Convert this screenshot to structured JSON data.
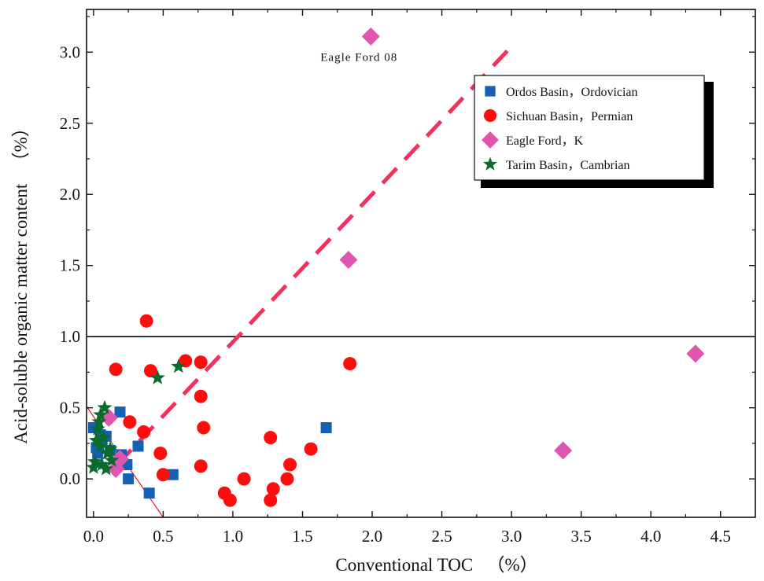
{
  "chart_data": {
    "type": "scatter",
    "title": "",
    "xlabel": "Conventional TOC 　（%）",
    "ylabel": "Acid-soluble organic matter content 　（%）",
    "xlim": [
      -0.05,
      4.75
    ],
    "ylim": [
      -0.27,
      3.3
    ],
    "xticks": [
      0.0,
      0.5,
      1.0,
      1.5,
      2.0,
      2.5,
      3.0,
      3.5,
      4.0,
      4.5
    ],
    "yticks": [
      0.0,
      0.5,
      1.0,
      1.5,
      2.0,
      2.5,
      3.0
    ],
    "xtick_labels": [
      "0.0",
      "0.5",
      "1.0",
      "1.5",
      "2.0",
      "2.5",
      "3.0",
      "3.5",
      "4.0",
      "4.5"
    ],
    "ytick_labels": [
      "0.0",
      "0.5",
      "1.0",
      "1.5",
      "2.0",
      "2.5",
      "3.0"
    ],
    "legend_position": "top-right",
    "annotation": {
      "text": "Eagle Ford 08",
      "x": 1.99,
      "y": 2.97
    },
    "reference_lines": [
      {
        "name": "horizontal-line-1",
        "type": "horizontal",
        "y": 1.0,
        "color": "#000000"
      },
      {
        "name": "thin-red-diagonal",
        "type": "segment",
        "x1": -0.05,
        "y1": 0.51,
        "x2": 0.5,
        "y2": -0.27,
        "color": "#e0202a"
      },
      {
        "name": "trend-line",
        "type": "segment",
        "dashed": true,
        "x1": 0.17,
        "y1": 0.1,
        "x2": 3.0,
        "y2": 3.04,
        "color": "#f0325f"
      }
    ],
    "series": [
      {
        "name": "Ordos Basin，Ordovician",
        "marker": "square",
        "color": "#1560b4",
        "points": [
          [
            0.0,
            0.36
          ],
          [
            0.02,
            0.22
          ],
          [
            0.03,
            0.18
          ],
          [
            0.05,
            0.31
          ],
          [
            0.06,
            0.26
          ],
          [
            0.09,
            0.3
          ],
          [
            0.12,
            0.2
          ],
          [
            0.19,
            0.47
          ],
          [
            0.2,
            0.17
          ],
          [
            0.24,
            0.1
          ],
          [
            0.25,
            0.0
          ],
          [
            0.32,
            0.23
          ],
          [
            0.4,
            -0.1
          ],
          [
            0.57,
            0.03
          ],
          [
            1.67,
            0.36
          ]
        ]
      },
      {
        "name": "Sichuan Basin，Permian",
        "marker": "circle",
        "color": "#ff0d0d",
        "points": [
          [
            0.16,
            0.77
          ],
          [
            0.26,
            0.4
          ],
          [
            0.36,
            0.33
          ],
          [
            0.38,
            1.11
          ],
          [
            0.41,
            0.76
          ],
          [
            0.48,
            0.18
          ],
          [
            0.5,
            0.03
          ],
          [
            0.66,
            0.83
          ],
          [
            0.77,
            0.82
          ],
          [
            0.77,
            0.58
          ],
          [
            0.77,
            0.09
          ],
          [
            0.79,
            0.36
          ],
          [
            0.94,
            -0.1
          ],
          [
            0.98,
            -0.15
          ],
          [
            1.08,
            0.0
          ],
          [
            1.27,
            -0.15
          ],
          [
            1.27,
            0.29
          ],
          [
            1.29,
            -0.07
          ],
          [
            1.39,
            0.0
          ],
          [
            1.41,
            0.1
          ],
          [
            1.56,
            0.21
          ],
          [
            1.84,
            0.81
          ]
        ]
      },
      {
        "name": "Eagle Ford，K",
        "marker": "diamond",
        "color": "#e055ae",
        "points": [
          [
            0.11,
            0.43
          ],
          [
            0.16,
            0.07
          ],
          [
            0.19,
            0.14
          ],
          [
            1.83,
            1.54
          ],
          [
            1.99,
            3.11
          ],
          [
            3.37,
            0.2
          ],
          [
            4.32,
            0.88
          ]
        ]
      },
      {
        "name": "Tarim Basin，Cambrian",
        "marker": "star",
        "color": "#0b6a2e",
        "points": [
          [
            0.0,
            0.08
          ],
          [
            0.01,
            0.12
          ],
          [
            0.02,
            0.27
          ],
          [
            0.03,
            0.35
          ],
          [
            0.04,
            0.4
          ],
          [
            0.05,
            0.45
          ],
          [
            0.05,
            0.23
          ],
          [
            0.06,
            0.1
          ],
          [
            0.07,
            0.29
          ],
          [
            0.08,
            0.5
          ],
          [
            0.09,
            0.07
          ],
          [
            0.1,
            0.18
          ],
          [
            0.12,
            0.21
          ],
          [
            0.13,
            0.13
          ],
          [
            0.46,
            0.71
          ],
          [
            0.61,
            0.79
          ]
        ]
      }
    ]
  }
}
